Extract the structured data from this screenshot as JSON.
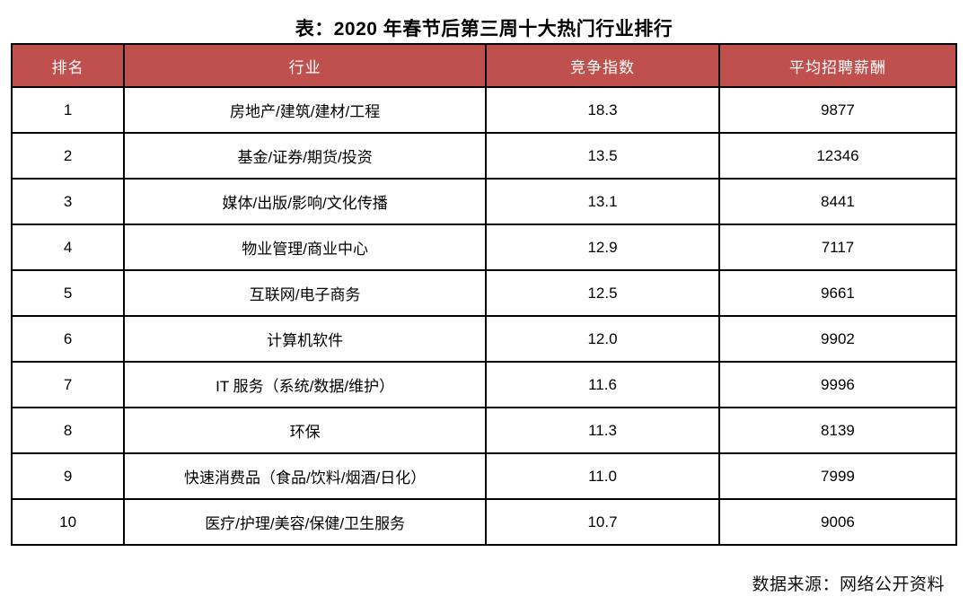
{
  "title": "表：2020 年春节后第三周十大热门行业排行",
  "source_note": "数据来源：网络公开资料",
  "colors": {
    "header_bg": "#C0504D",
    "header_text": "#FFFFFF",
    "border": "#000000",
    "body_bg": "#FFFFFF"
  },
  "chart_data": {
    "type": "table",
    "title": "表：2020 年春节后第三周十大热门行业排行",
    "columns": [
      "排名",
      "行业",
      "竞争指数",
      "平均招聘薪酬"
    ],
    "rows": [
      [
        "1",
        "房地产/建筑/建材/工程",
        "18.3",
        "9877"
      ],
      [
        "2",
        "基金/证券/期货/投资",
        "13.5",
        "12346"
      ],
      [
        "3",
        "媒体/出版/影响/文化传播",
        "13.1",
        "8441"
      ],
      [
        "4",
        "物业管理/商业中心",
        "12.9",
        "7117"
      ],
      [
        "5",
        "互联网/电子商务",
        "12.5",
        "9661"
      ],
      [
        "6",
        "计算机软件",
        "12.0",
        "9902"
      ],
      [
        "7",
        "IT 服务（系统/数据/维护）",
        "11.6",
        "9996"
      ],
      [
        "8",
        "环保",
        "11.3",
        "8139"
      ],
      [
        "9",
        "快速消费品（食品/饮料/烟酒/日化）",
        "11.0",
        "7999"
      ],
      [
        "10",
        "医疗/护理/美容/保健/卫生服务",
        "10.7",
        "9006"
      ]
    ],
    "source_note": "数据来源：网络公开资料",
    "layout": {
      "header_style": "red-fill-white-text",
      "grid": "black-solid-borders",
      "title_position": "top-center",
      "source_position": "bottom-right"
    }
  }
}
